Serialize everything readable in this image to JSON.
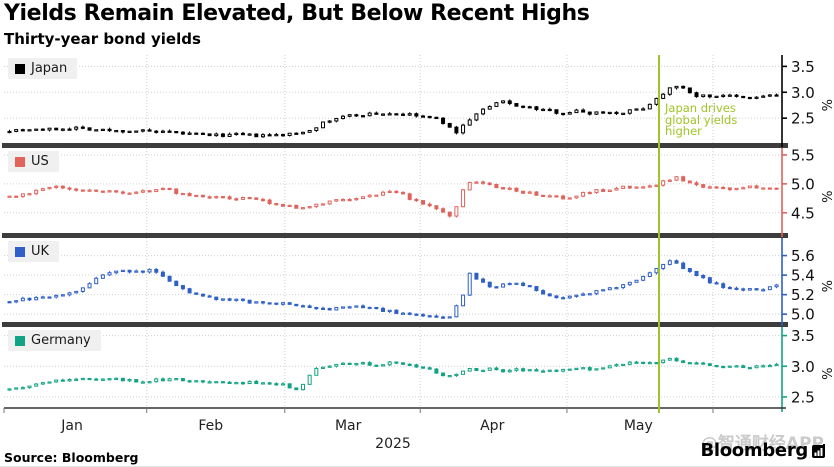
{
  "header": {
    "title": "Yields Remain Elevated, But Below Recent Highs",
    "subtitle": "Thirty-year bond yields"
  },
  "source_label": "Source: Bloomberg",
  "branding": {
    "name": "Bloomberg",
    "icon": "bar-chart-terminal-icon"
  },
  "watermark_text": "@智通财经APP",
  "annotation": {
    "lines": [
      "Japan drives",
      "global yields",
      "higher"
    ],
    "x_index": 97.6,
    "color": "#a0c427"
  },
  "colors": {
    "grid": "#cfcfcf",
    "separator": "#3d3d3d",
    "axis_label": "#111111",
    "month_label": "#222222",
    "bottom_axis": "#333333"
  },
  "chart_data": {
    "type": "candlestick",
    "title": "Yields Remain Elevated, But Below Recent Highs",
    "subtitle": "Thirty-year bond yields",
    "unit": "%",
    "x_axis": {
      "year_label": "2025",
      "month_labels": [
        "Jan",
        "Feb",
        "Mar",
        "Apr",
        "May"
      ],
      "month_label_indices": [
        9.6,
        30.4,
        51.0,
        72.6,
        94.5
      ],
      "month_gridline_indices": [
        20.8,
        41.5,
        61.8,
        83.8,
        105.7
      ],
      "n_points": 116
    },
    "legend_position": "top-left-each-panel",
    "grid": "dotted",
    "panels": [
      {
        "name": "Japan",
        "color": "#000000",
        "ylim": [
          2.02,
          3.72
        ],
        "yticks": [
          3.5,
          3.0,
          2.5
        ],
        "keypoints": [
          [
            0,
            2.27
          ],
          [
            3,
            2.29
          ],
          [
            6,
            2.28
          ],
          [
            10,
            2.32
          ],
          [
            13,
            2.28
          ],
          [
            16,
            2.25
          ],
          [
            19,
            2.26
          ],
          [
            22,
            2.23
          ],
          [
            25,
            2.21
          ],
          [
            28,
            2.19
          ],
          [
            31,
            2.17
          ],
          [
            34,
            2.18
          ],
          [
            37,
            2.16
          ],
          [
            40,
            2.17
          ],
          [
            43,
            2.2
          ],
          [
            45,
            2.28
          ],
          [
            47,
            2.4
          ],
          [
            49,
            2.5
          ],
          [
            51,
            2.55
          ],
          [
            54,
            2.58
          ],
          [
            57,
            2.59
          ],
          [
            60,
            2.56
          ],
          [
            62,
            2.53
          ],
          [
            64,
            2.48
          ],
          [
            65,
            2.42
          ],
          [
            66,
            2.3
          ],
          [
            67,
            2.24
          ],
          [
            68,
            2.35
          ],
          [
            69,
            2.48
          ],
          [
            70,
            2.58
          ],
          [
            71,
            2.66
          ],
          [
            73,
            2.78
          ],
          [
            74,
            2.82
          ],
          [
            75,
            2.78
          ],
          [
            77,
            2.72
          ],
          [
            79,
            2.68
          ],
          [
            81,
            2.64
          ],
          [
            83,
            2.6
          ],
          [
            85,
            2.64
          ],
          [
            87,
            2.6
          ],
          [
            89,
            2.62
          ],
          [
            91,
            2.6
          ],
          [
            93,
            2.64
          ],
          [
            95,
            2.7
          ],
          [
            96,
            2.78
          ],
          [
            97,
            2.88
          ],
          [
            98,
            2.98
          ],
          [
            99,
            3.1
          ],
          [
            100,
            3.14
          ],
          [
            101,
            3.06
          ],
          [
            102,
            2.98
          ],
          [
            103,
            2.94
          ],
          [
            105,
            2.92
          ],
          [
            107,
            2.95
          ],
          [
            109,
            2.9
          ],
          [
            111,
            2.88
          ],
          [
            113,
            2.93
          ],
          [
            115,
            2.94
          ]
        ]
      },
      {
        "name": "US",
        "color": "#e0635c",
        "ylim": [
          4.15,
          5.62
        ],
        "yticks": [
          5.5,
          5.0,
          4.5
        ],
        "keypoints": [
          [
            0,
            4.77
          ],
          [
            3,
            4.85
          ],
          [
            6,
            4.92
          ],
          [
            8,
            4.95
          ],
          [
            11,
            4.89
          ],
          [
            13,
            4.86
          ],
          [
            15,
            4.88
          ],
          [
            18,
            4.84
          ],
          [
            21,
            4.88
          ],
          [
            23,
            4.93
          ],
          [
            26,
            4.82
          ],
          [
            30,
            4.77
          ],
          [
            33,
            4.75
          ],
          [
            36,
            4.74
          ],
          [
            38,
            4.7
          ],
          [
            41,
            4.63
          ],
          [
            44,
            4.58
          ],
          [
            46,
            4.63
          ],
          [
            48,
            4.68
          ],
          [
            50,
            4.74
          ],
          [
            53,
            4.77
          ],
          [
            55,
            4.81
          ],
          [
            57,
            4.86
          ],
          [
            59,
            4.81
          ],
          [
            60,
            4.74
          ],
          [
            62,
            4.67
          ],
          [
            63,
            4.61
          ],
          [
            65,
            4.53
          ],
          [
            66,
            4.44
          ],
          [
            67,
            4.61
          ],
          [
            68,
            4.88
          ],
          [
            69,
            5.02
          ],
          [
            70,
            5.05
          ],
          [
            72,
            4.98
          ],
          [
            73,
            4.95
          ],
          [
            75,
            4.91
          ],
          [
            76,
            4.88
          ],
          [
            78,
            4.84
          ],
          [
            80,
            4.81
          ],
          [
            82,
            4.77
          ],
          [
            84,
            4.75
          ],
          [
            85,
            4.79
          ],
          [
            86,
            4.84
          ],
          [
            88,
            4.88
          ],
          [
            90,
            4.9
          ],
          [
            91,
            4.93
          ],
          [
            93,
            4.95
          ],
          [
            94,
            4.96
          ],
          [
            96,
            4.95
          ],
          [
            97,
            4.98
          ],
          [
            98,
            5.04
          ],
          [
            100,
            5.11
          ],
          [
            101,
            5.05
          ],
          [
            102,
            5.0
          ],
          [
            104,
            4.96
          ],
          [
            106,
            4.95
          ],
          [
            108,
            4.91
          ],
          [
            110,
            4.93
          ],
          [
            112,
            4.95
          ],
          [
            115,
            4.93
          ]
        ]
      },
      {
        "name": "UK",
        "color": "#2f5fc7",
        "ylim": [
          4.92,
          5.78
        ],
        "yticks": [
          5.6,
          5.4,
          5.2,
          5.0
        ],
        "keypoints": [
          [
            0,
            5.14
          ],
          [
            2,
            5.15
          ],
          [
            4,
            5.16
          ],
          [
            6,
            5.18
          ],
          [
            8,
            5.2
          ],
          [
            10,
            5.24
          ],
          [
            12,
            5.3
          ],
          [
            13,
            5.37
          ],
          [
            15,
            5.42
          ],
          [
            17,
            5.44
          ],
          [
            19,
            5.43
          ],
          [
            21,
            5.46
          ],
          [
            22,
            5.42
          ],
          [
            23,
            5.38
          ],
          [
            25,
            5.3
          ],
          [
            27,
            5.23
          ],
          [
            29,
            5.18
          ],
          [
            31,
            5.15
          ],
          [
            34,
            5.14
          ],
          [
            37,
            5.12
          ],
          [
            40,
            5.11
          ],
          [
            42,
            5.1
          ],
          [
            45,
            5.07
          ],
          [
            48,
            5.05
          ],
          [
            50,
            5.07
          ],
          [
            52,
            5.09
          ],
          [
            54,
            5.06
          ],
          [
            56,
            5.04
          ],
          [
            58,
            5.02
          ],
          [
            60,
            5.0
          ],
          [
            62,
            4.99
          ],
          [
            64,
            4.96
          ],
          [
            66,
            4.98
          ],
          [
            68,
            5.2
          ],
          [
            69,
            5.42
          ],
          [
            70,
            5.35
          ],
          [
            72,
            5.28
          ],
          [
            74,
            5.3
          ],
          [
            76,
            5.33
          ],
          [
            78,
            5.27
          ],
          [
            80,
            5.22
          ],
          [
            82,
            5.18
          ],
          [
            84,
            5.17
          ],
          [
            86,
            5.2
          ],
          [
            88,
            5.23
          ],
          [
            90,
            5.26
          ],
          [
            92,
            5.3
          ],
          [
            94,
            5.36
          ],
          [
            96,
            5.42
          ],
          [
            97,
            5.47
          ],
          [
            98,
            5.52
          ],
          [
            99,
            5.56
          ],
          [
            100,
            5.52
          ],
          [
            101,
            5.46
          ],
          [
            103,
            5.4
          ],
          [
            105,
            5.33
          ],
          [
            107,
            5.28
          ],
          [
            109,
            5.25
          ],
          [
            111,
            5.26
          ],
          [
            113,
            5.24
          ],
          [
            115,
            5.3
          ]
        ]
      },
      {
        "name": "Germany",
        "color": "#12a384",
        "ylim": [
          2.32,
          3.64
        ],
        "yticks": [
          3.5,
          3.0,
          2.5
        ],
        "keypoints": [
          [
            0,
            2.63
          ],
          [
            3,
            2.69
          ],
          [
            7,
            2.76
          ],
          [
            10,
            2.8
          ],
          [
            13,
            2.8
          ],
          [
            16,
            2.79
          ],
          [
            19,
            2.76
          ],
          [
            21,
            2.77
          ],
          [
            24,
            2.79
          ],
          [
            27,
            2.77
          ],
          [
            30,
            2.75
          ],
          [
            33,
            2.73
          ],
          [
            36,
            2.74
          ],
          [
            39,
            2.72
          ],
          [
            41,
            2.7
          ],
          [
            42,
            2.65
          ],
          [
            43,
            2.62
          ],
          [
            44,
            2.7
          ],
          [
            45,
            2.85
          ],
          [
            46,
            2.95
          ],
          [
            47,
            3.0
          ],
          [
            49,
            3.03
          ],
          [
            51,
            3.05
          ],
          [
            53,
            3.04
          ],
          [
            55,
            3.02
          ],
          [
            57,
            3.05
          ],
          [
            59,
            3.02
          ],
          [
            61,
            3.0
          ],
          [
            63,
            2.95
          ],
          [
            64,
            2.88
          ],
          [
            66,
            2.83
          ],
          [
            67,
            2.86
          ],
          [
            68,
            2.92
          ],
          [
            69,
            2.97
          ],
          [
            70,
            2.94
          ],
          [
            72,
            2.96
          ],
          [
            74,
            2.93
          ],
          [
            76,
            2.95
          ],
          [
            78,
            2.93
          ],
          [
            80,
            2.92
          ],
          [
            82,
            2.93
          ],
          [
            84,
            2.94
          ],
          [
            86,
            2.96
          ],
          [
            88,
            2.95
          ],
          [
            90,
            2.99
          ],
          [
            92,
            3.04
          ],
          [
            94,
            3.06
          ],
          [
            96,
            3.07
          ],
          [
            98,
            3.09
          ],
          [
            99,
            3.13
          ],
          [
            100,
            3.1
          ],
          [
            102,
            3.05
          ],
          [
            104,
            3.02
          ],
          [
            106,
            3.0
          ],
          [
            108,
            3.0
          ],
          [
            110,
            2.99
          ],
          [
            112,
            3.0
          ],
          [
            115,
            3.03
          ]
        ]
      }
    ]
  }
}
